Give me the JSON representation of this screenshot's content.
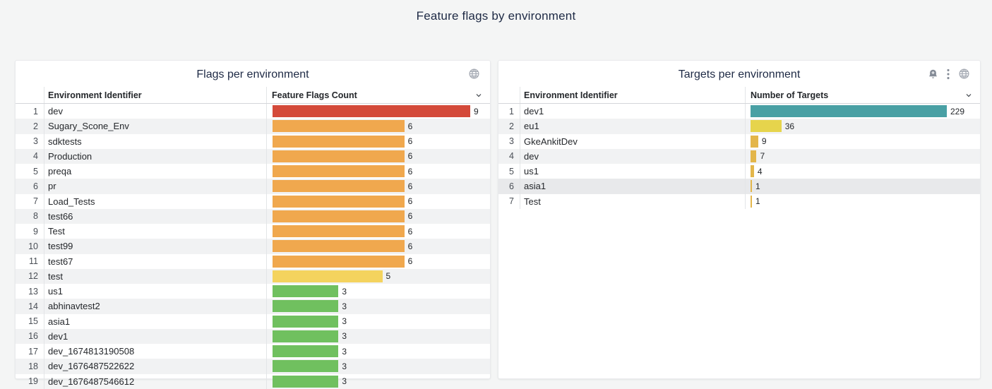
{
  "page": {
    "title": "Feature flags by environment",
    "background_color": "#f4f5f5",
    "title_color": "#1e2a45"
  },
  "panels": [
    {
      "title": "Flags per environment",
      "icons": [
        "globe-icon"
      ],
      "columns": {
        "env": "Environment Identifier",
        "value": "Feature Flags Count"
      },
      "max_value": 9,
      "rows": [
        {
          "index": 1,
          "env": "dev",
          "value": 9,
          "color": "#d44a3a"
        },
        {
          "index": 2,
          "env": "Sugary_Scone_Env",
          "value": 6,
          "color": "#f0a84e"
        },
        {
          "index": 3,
          "env": "sdktests",
          "value": 6,
          "color": "#f0a84e"
        },
        {
          "index": 4,
          "env": "Production",
          "value": 6,
          "color": "#f0a84e"
        },
        {
          "index": 5,
          "env": "preqa",
          "value": 6,
          "color": "#f0a84e"
        },
        {
          "index": 6,
          "env": "pr",
          "value": 6,
          "color": "#f0a84e"
        },
        {
          "index": 7,
          "env": "Load_Tests",
          "value": 6,
          "color": "#f0a84e"
        },
        {
          "index": 8,
          "env": "test66",
          "value": 6,
          "color": "#f0a84e"
        },
        {
          "index": 9,
          "env": "Test",
          "value": 6,
          "color": "#f0a84e"
        },
        {
          "index": 10,
          "env": "test99",
          "value": 6,
          "color": "#f0a84e"
        },
        {
          "index": 11,
          "env": "test67",
          "value": 6,
          "color": "#f0a84e"
        },
        {
          "index": 12,
          "env": "test",
          "value": 5,
          "color": "#f4d35e"
        },
        {
          "index": 13,
          "env": "us1",
          "value": 3,
          "color": "#70c05f"
        },
        {
          "index": 14,
          "env": "abhinavtest2",
          "value": 3,
          "color": "#70c05f"
        },
        {
          "index": 15,
          "env": "asia1",
          "value": 3,
          "color": "#70c05f"
        },
        {
          "index": 16,
          "env": "dev1",
          "value": 3,
          "color": "#70c05f"
        },
        {
          "index": 17,
          "env": "dev_1674813190508",
          "value": 3,
          "color": "#70c05f"
        },
        {
          "index": 18,
          "env": "dev_1676487522622",
          "value": 3,
          "color": "#70c05f"
        },
        {
          "index": 19,
          "env": "dev_1676487546612",
          "value": 3,
          "color": "#70c05f"
        }
      ]
    },
    {
      "title": "Targets per environment",
      "icons": [
        "alert-bell-icon",
        "kebab-menu-icon",
        "globe-icon"
      ],
      "columns": {
        "env": "Environment Identifier",
        "value": "Number of Targets"
      },
      "max_value": 229,
      "rows": [
        {
          "index": 1,
          "env": "dev1",
          "value": 229,
          "color": "#49a0a4"
        },
        {
          "index": 2,
          "env": "eu1",
          "value": 36,
          "color": "#e6d44c"
        },
        {
          "index": 3,
          "env": "GkeAnkitDev",
          "value": 9,
          "color": "#e3b64a"
        },
        {
          "index": 4,
          "env": "dev",
          "value": 7,
          "color": "#e3b64a"
        },
        {
          "index": 5,
          "env": "us1",
          "value": 4,
          "color": "#e3b64a"
        },
        {
          "index": 6,
          "env": "asia1",
          "value": 1,
          "color": "#e3b64a",
          "highlighted": true
        },
        {
          "index": 7,
          "env": "Test",
          "value": 1,
          "color": "#e3b64a"
        }
      ]
    }
  ]
}
